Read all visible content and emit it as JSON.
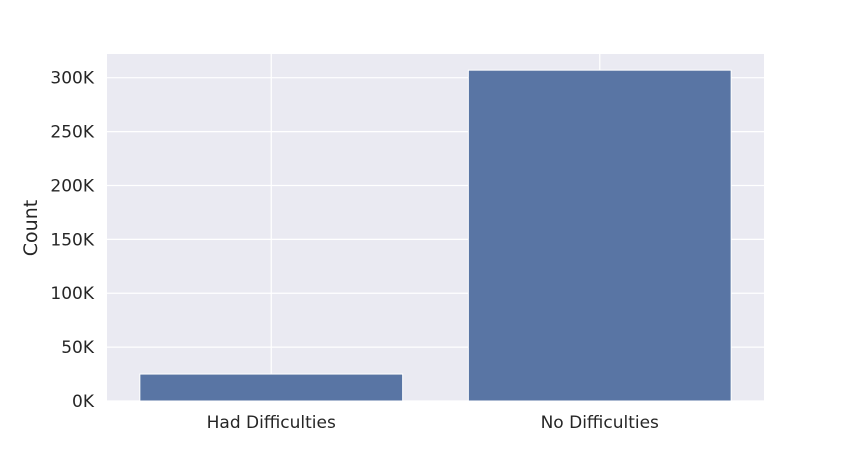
{
  "chart_data": {
    "type": "bar",
    "title": "",
    "xlabel": "",
    "ylabel": "Count",
    "categories": [
      "Had Difficulties",
      "No Difficulties"
    ],
    "values": [
      25000,
      307000
    ],
    "ylim": [
      0,
      322000
    ],
    "yticks": [
      0,
      50000,
      100000,
      150000,
      200000,
      250000,
      300000
    ],
    "ytick_labels": [
      "0K",
      "50K",
      "100K",
      "150K",
      "200K",
      "250K",
      "300K"
    ],
    "grid": true,
    "legend": "none",
    "colors": {
      "bar": "#5975a4",
      "plot_background": "#eaeaf2",
      "grid": "#ffffff",
      "text": "#262626"
    }
  }
}
